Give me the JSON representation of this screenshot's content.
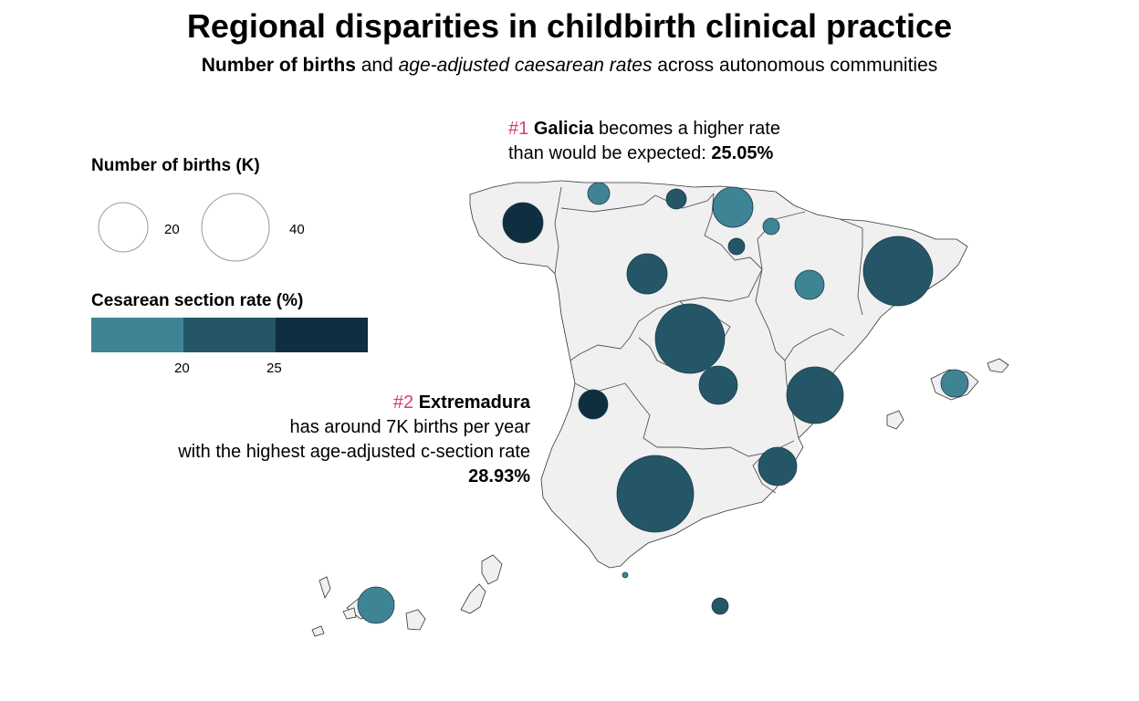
{
  "title": "Regional disparities in childbirth clinical practice",
  "subtitle": {
    "part1": "Number of births",
    "part2": " and ",
    "part3": "age-adjusted caesarean rates",
    "part4": " across autonomous communities"
  },
  "legend_size": {
    "title": "Number of births (K)",
    "items": [
      {
        "label": "20"
      },
      {
        "label": "40"
      }
    ]
  },
  "legend_color": {
    "title": "Cesarean section rate (%)",
    "bins": [
      "#3f8495",
      "#255667",
      "#0f2e40"
    ],
    "ticks": [
      "20",
      "25"
    ]
  },
  "annotation_galicia": {
    "rank": "#1",
    "name": "Galicia",
    "text1": " becomes a higher rate",
    "text2": "than would be expected: ",
    "value": "25.05%"
  },
  "annotation_extremadura": {
    "rank": "#2",
    "name": "Extremadura",
    "line2": "has around 7K births per year",
    "line3": "with the highest age-adjusted c-section rate",
    "value": "28.93%"
  },
  "colors": {
    "land": "#f0f0f0",
    "border": "#333333",
    "accent": "#d63b7f"
  },
  "regions": [
    {
      "name": "Galicia",
      "color_bin": 2
    },
    {
      "name": "Asturias",
      "color_bin": 0
    },
    {
      "name": "Cantabria",
      "color_bin": 1
    },
    {
      "name": "País Vasco",
      "color_bin": 0
    },
    {
      "name": "Navarra",
      "color_bin": 0
    },
    {
      "name": "La Rioja",
      "color_bin": 1
    },
    {
      "name": "Castilla y León",
      "color_bin": 1
    },
    {
      "name": "Aragón",
      "color_bin": 0
    },
    {
      "name": "Cataluña",
      "color_bin": 1
    },
    {
      "name": "Madrid",
      "color_bin": 1
    },
    {
      "name": "Castilla-La Mancha",
      "color_bin": 1
    },
    {
      "name": "Comunitat Valenciana",
      "color_bin": 1
    },
    {
      "name": "Illes Balears",
      "color_bin": 0
    },
    {
      "name": "Extremadura",
      "color_bin": 2
    },
    {
      "name": "Andalucía",
      "color_bin": 1
    },
    {
      "name": "Región de Murcia",
      "color_bin": 1
    },
    {
      "name": "Ceuta",
      "color_bin": 0
    },
    {
      "name": "Melilla",
      "color_bin": 1
    },
    {
      "name": "Canarias",
      "color_bin": 0
    }
  ]
}
